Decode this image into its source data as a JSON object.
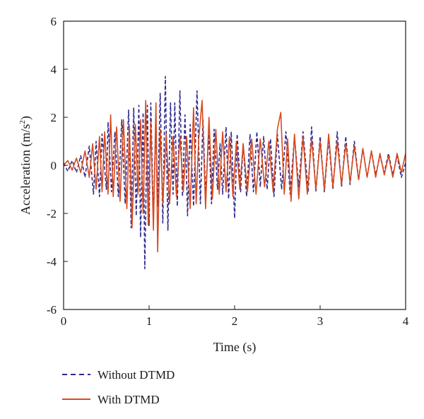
{
  "chart_data": {
    "type": "line",
    "xlabel": "Time (s)",
    "ylabel_main": "Acceleration (m/s",
    "ylabel_sup": "2",
    "ylabel_close": ")",
    "xlim": [
      0,
      4
    ],
    "ylim": [
      -6,
      6
    ],
    "xticks": [
      0,
      1,
      2,
      3,
      4
    ],
    "xtick_labels": [
      "0",
      "1",
      "2",
      "3",
      "4"
    ],
    "yticks": [
      6,
      4,
      2,
      0,
      -2,
      -4,
      -6
    ],
    "ytick_labels": [
      "6",
      "4",
      "2",
      "0",
      "-2",
      "-4",
      "-6"
    ],
    "grid": false,
    "legend_position": "bottom-left, below plot",
    "series": [
      {
        "name": "Without DTMD",
        "color": "#2e2a8f",
        "dash": "dashed",
        "points": [
          [
            0,
            0.1
          ],
          [
            0.05,
            -0.25
          ],
          [
            0.1,
            0.2
          ],
          [
            0.15,
            -0.3
          ],
          [
            0.2,
            0.4
          ],
          [
            0.25,
            -0.5
          ],
          [
            0.3,
            0.8
          ],
          [
            0.35,
            -1.2
          ],
          [
            0.38,
            1.0
          ],
          [
            0.42,
            -1.3
          ],
          [
            0.45,
            1.3
          ],
          [
            0.5,
            -1.0
          ],
          [
            0.52,
            1.8
          ],
          [
            0.56,
            -1.1
          ],
          [
            0.6,
            1.4
          ],
          [
            0.64,
            -1.3
          ],
          [
            0.68,
            1.9
          ],
          [
            0.72,
            -1.6
          ],
          [
            0.76,
            2.3
          ],
          [
            0.79,
            -2.6
          ],
          [
            0.82,
            2.4
          ],
          [
            0.85,
            -2.1
          ],
          [
            0.88,
            2.5
          ],
          [
            0.9,
            -3.0
          ],
          [
            0.93,
            2.2
          ],
          [
            0.95,
            -4.3
          ],
          [
            0.98,
            2.5
          ],
          [
            1.0,
            -2.5
          ],
          [
            1.02,
            2.6
          ],
          [
            1.05,
            -2.2
          ],
          [
            1.08,
            1.8
          ],
          [
            1.1,
            -1.7
          ],
          [
            1.13,
            3.0
          ],
          [
            1.16,
            -2.4
          ],
          [
            1.19,
            3.7
          ],
          [
            1.22,
            -2.7
          ],
          [
            1.25,
            2.6
          ],
          [
            1.28,
            -1.2
          ],
          [
            1.3,
            2.6
          ],
          [
            1.33,
            -1.7
          ],
          [
            1.36,
            3.1
          ],
          [
            1.39,
            -1.3
          ],
          [
            1.42,
            2.1
          ],
          [
            1.45,
            -2.1
          ],
          [
            1.48,
            1.7
          ],
          [
            1.52,
            -1.7
          ],
          [
            1.56,
            3.1
          ],
          [
            1.6,
            -1.6
          ],
          [
            1.63,
            1.9
          ],
          [
            1.66,
            -1.2
          ],
          [
            1.7,
            1.3
          ],
          [
            1.73,
            -1.6
          ],
          [
            1.76,
            1.5
          ],
          [
            1.8,
            -1.0
          ],
          [
            1.83,
            0.9
          ],
          [
            1.86,
            -1.2
          ],
          [
            1.9,
            1.6
          ],
          [
            1.93,
            -1.4
          ],
          [
            1.96,
            1.4
          ],
          [
            2.0,
            -2.2
          ],
          [
            2.03,
            1.3
          ],
          [
            2.07,
            -1.1
          ],
          [
            2.1,
            0.9
          ],
          [
            2.14,
            -1.3
          ],
          [
            2.18,
            1.3
          ],
          [
            2.22,
            -1.1
          ],
          [
            2.26,
            1.4
          ],
          [
            2.3,
            -0.9
          ],
          [
            2.34,
            1.2
          ],
          [
            2.38,
            -1.0
          ],
          [
            2.42,
            1.1
          ],
          [
            2.46,
            -1.3
          ],
          [
            2.5,
            1.3
          ],
          [
            2.55,
            -1.0
          ],
          [
            2.6,
            1.4
          ],
          [
            2.65,
            -1.2
          ],
          [
            2.7,
            1.2
          ],
          [
            2.75,
            -0.9
          ],
          [
            2.8,
            1.4
          ],
          [
            2.86,
            -1.1
          ],
          [
            2.9,
            1.6
          ],
          [
            2.95,
            -1.1
          ],
          [
            3.0,
            1.2
          ],
          [
            3.05,
            -1.1
          ],
          [
            3.1,
            1.1
          ],
          [
            3.15,
            -1.0
          ],
          [
            3.2,
            1.4
          ],
          [
            3.25,
            -0.9
          ],
          [
            3.3,
            1.2
          ],
          [
            3.35,
            -0.8
          ],
          [
            3.4,
            1.0
          ],
          [
            3.45,
            -0.6
          ],
          [
            3.5,
            0.7
          ],
          [
            3.55,
            -0.5
          ],
          [
            3.6,
            0.6
          ],
          [
            3.65,
            -0.4
          ],
          [
            3.7,
            0.4
          ],
          [
            3.75,
            -0.3
          ],
          [
            3.8,
            0.5
          ],
          [
            3.85,
            -0.4
          ],
          [
            3.9,
            0.4
          ],
          [
            3.95,
            -0.5
          ],
          [
            4.0,
            0.1
          ]
        ]
      },
      {
        "name": "With DTMD",
        "color": "#d84a1f",
        "dash": "solid",
        "points": [
          [
            0,
            0.0
          ],
          [
            0.05,
            0.2
          ],
          [
            0.1,
            -0.2
          ],
          [
            0.15,
            0.3
          ],
          [
            0.2,
            -0.3
          ],
          [
            0.25,
            0.6
          ],
          [
            0.3,
            -0.5
          ],
          [
            0.34,
            0.9
          ],
          [
            0.38,
            -1.0
          ],
          [
            0.42,
            1.2
          ],
          [
            0.45,
            -1.1
          ],
          [
            0.48,
            1.4
          ],
          [
            0.52,
            -1.2
          ],
          [
            0.55,
            2.1
          ],
          [
            0.58,
            -1.3
          ],
          [
            0.62,
            1.6
          ],
          [
            0.66,
            -1.5
          ],
          [
            0.7,
            1.9
          ],
          [
            0.74,
            -1.8
          ],
          [
            0.77,
            1.6
          ],
          [
            0.8,
            -2.6
          ],
          [
            0.84,
            1.7
          ],
          [
            0.87,
            -1.2
          ],
          [
            0.9,
            1.9
          ],
          [
            0.93,
            -2.0
          ],
          [
            0.96,
            2.7
          ],
          [
            0.99,
            -2.5
          ],
          [
            1.02,
            1.8
          ],
          [
            1.05,
            -2.7
          ],
          [
            1.08,
            2.6
          ],
          [
            1.1,
            -3.6
          ],
          [
            1.13,
            1.5
          ],
          [
            1.16,
            -1.6
          ],
          [
            1.2,
            1.3
          ],
          [
            1.24,
            -1.6
          ],
          [
            1.28,
            1.2
          ],
          [
            1.32,
            -1.3
          ],
          [
            1.36,
            1.2
          ],
          [
            1.4,
            -1.1
          ],
          [
            1.44,
            1.2
          ],
          [
            1.48,
            -1.8
          ],
          [
            1.52,
            2.4
          ],
          [
            1.55,
            -1.6
          ],
          [
            1.58,
            1.1
          ],
          [
            1.62,
            2.7
          ],
          [
            1.66,
            -1.8
          ],
          [
            1.7,
            2.0
          ],
          [
            1.74,
            -1.4
          ],
          [
            1.78,
            1.5
          ],
          [
            1.82,
            -1.2
          ],
          [
            1.86,
            1.4
          ],
          [
            1.9,
            -1.1
          ],
          [
            1.94,
            1.2
          ],
          [
            1.98,
            -1.3
          ],
          [
            2.02,
            1.0
          ],
          [
            2.06,
            -1.0
          ],
          [
            2.1,
            0.9
          ],
          [
            2.15,
            -1.1
          ],
          [
            2.2,
            1.1
          ],
          [
            2.25,
            -1.2
          ],
          [
            2.3,
            1.1
          ],
          [
            2.35,
            -0.9
          ],
          [
            2.4,
            1.0
          ],
          [
            2.45,
            -1.1
          ],
          [
            2.5,
            1.5
          ],
          [
            2.54,
            2.2
          ],
          [
            2.58,
            -1.2
          ],
          [
            2.62,
            1.1
          ],
          [
            2.66,
            -1.5
          ],
          [
            2.7,
            1.3
          ],
          [
            2.75,
            -1.4
          ],
          [
            2.8,
            1.2
          ],
          [
            2.85,
            -1.2
          ],
          [
            2.9,
            1.1
          ],
          [
            2.95,
            -1.0
          ],
          [
            3.0,
            1.0
          ],
          [
            3.05,
            -1.0
          ],
          [
            3.1,
            1.3
          ],
          [
            3.15,
            -0.9
          ],
          [
            3.2,
            1.0
          ],
          [
            3.25,
            -0.8
          ],
          [
            3.3,
            0.9
          ],
          [
            3.35,
            -0.7
          ],
          [
            3.4,
            0.8
          ],
          [
            3.45,
            -0.6
          ],
          [
            3.5,
            0.7
          ],
          [
            3.55,
            -0.5
          ],
          [
            3.6,
            0.6
          ],
          [
            3.65,
            -0.5
          ],
          [
            3.7,
            0.5
          ],
          [
            3.75,
            -0.4
          ],
          [
            3.8,
            0.4
          ],
          [
            3.85,
            -0.5
          ],
          [
            3.9,
            0.5
          ],
          [
            3.95,
            -0.3
          ],
          [
            4.0,
            0.5
          ]
        ]
      }
    ]
  }
}
